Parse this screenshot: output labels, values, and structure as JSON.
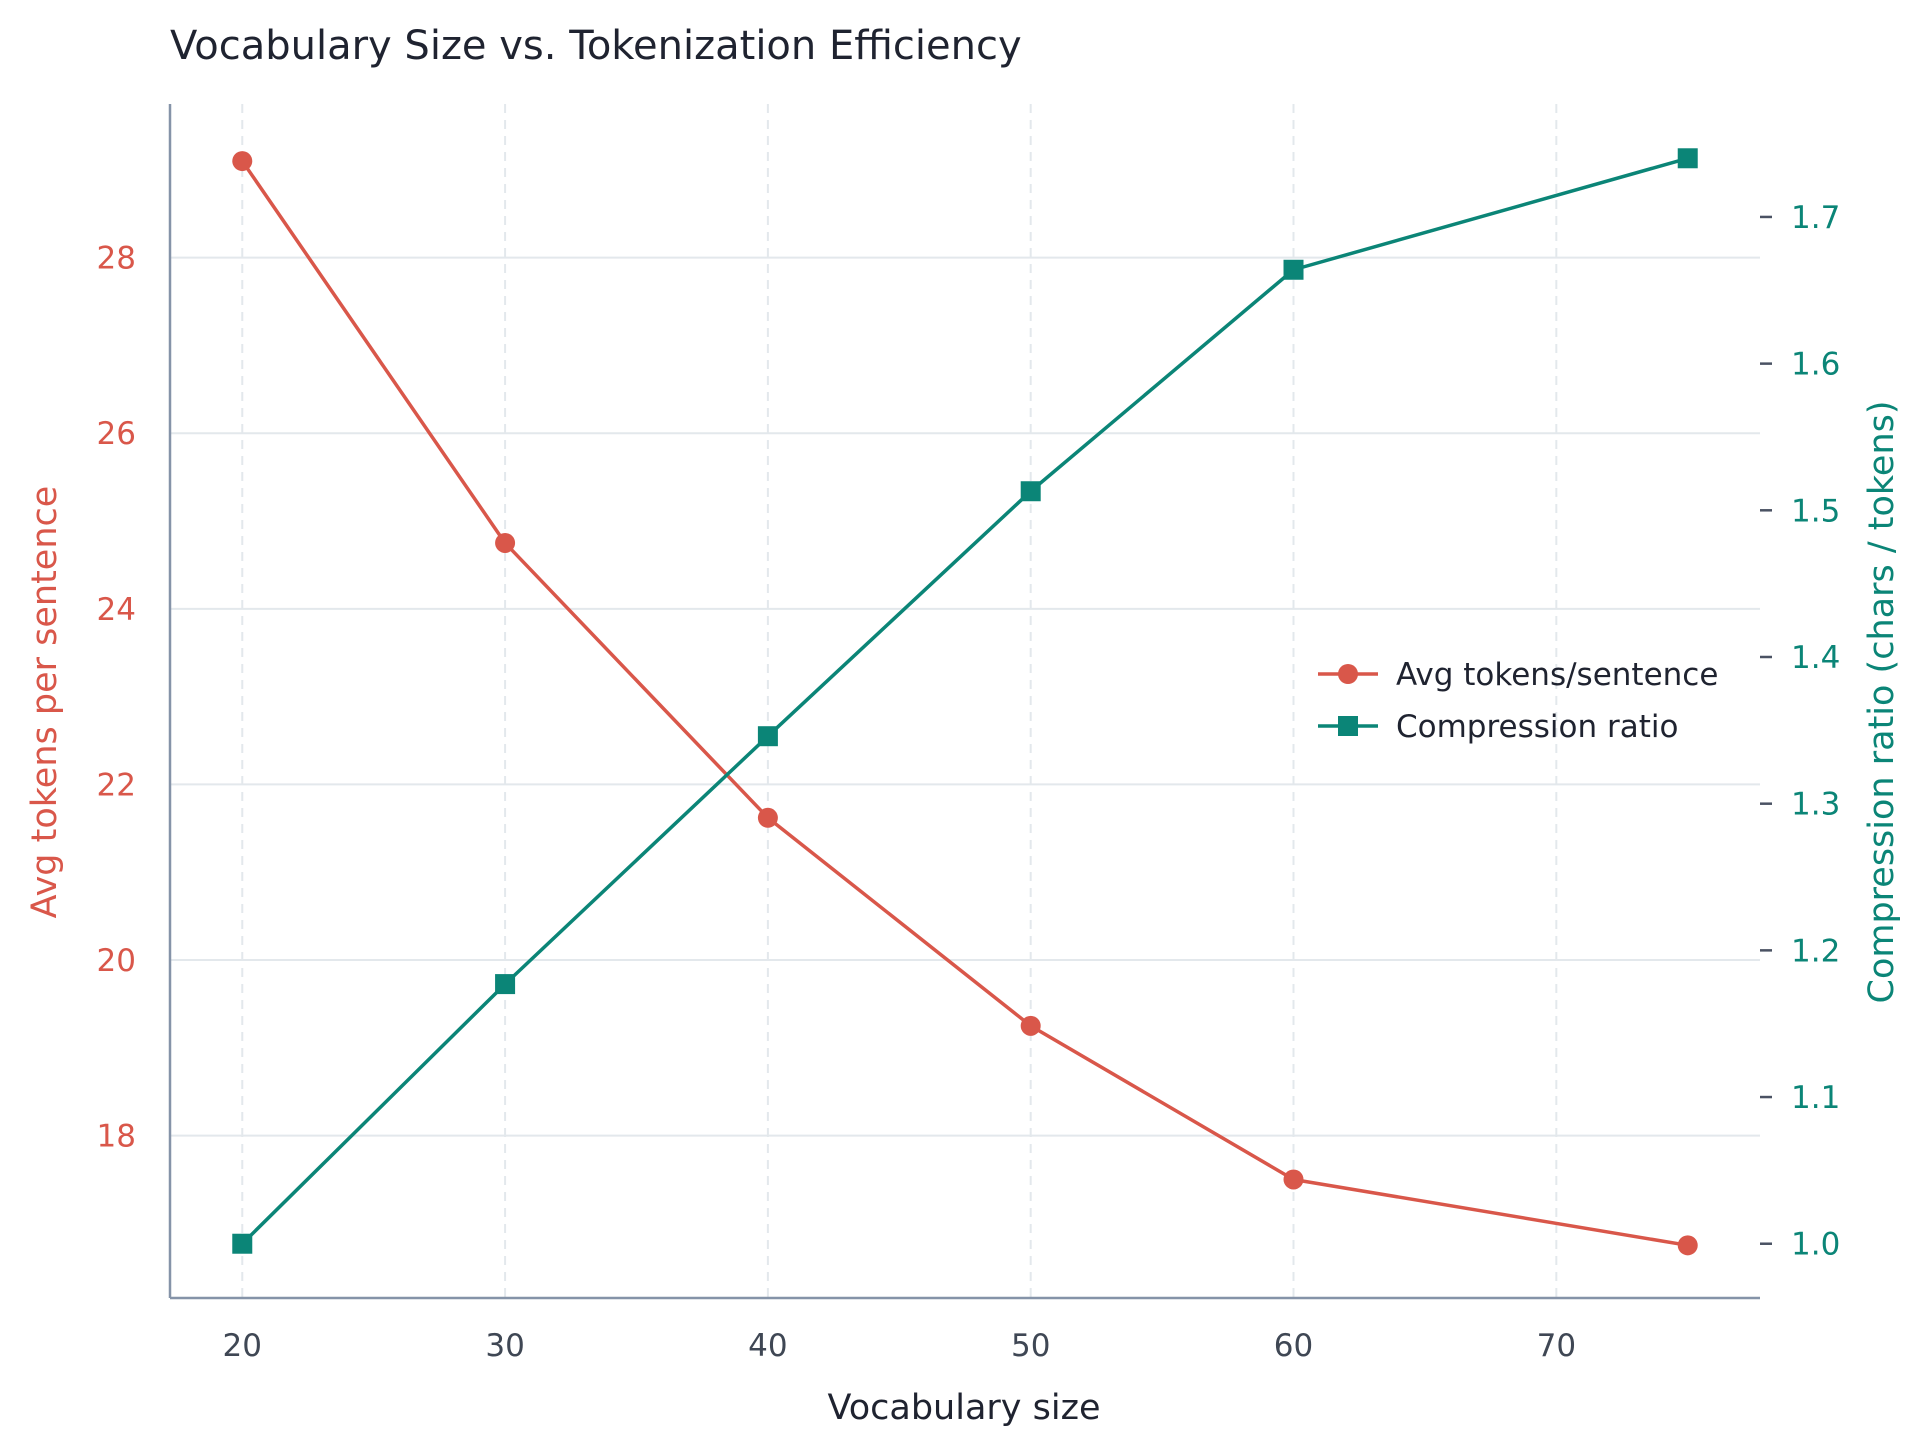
{
  "chart_data": {
    "type": "line",
    "title": "Vocabulary Size vs. Tokenization Efficiency",
    "xlabel": "Vocabulary size",
    "x": [
      20,
      30,
      40,
      50,
      60,
      75
    ],
    "x_ticks": [
      20,
      30,
      40,
      50,
      60,
      70
    ],
    "xlim": [
      17.25,
      77.75
    ],
    "grid": true,
    "legend_position": "center-right",
    "y_left": {
      "label": "Avg tokens per sentence",
      "ticks": [
        18,
        20,
        22,
        24,
        26,
        28
      ],
      "ylim": [
        16.15,
        29.75
      ],
      "color": "#d9574a"
    },
    "y_right": {
      "label": "Compression ratio (chars / tokens)",
      "ticks": [
        "1.0",
        "1.1",
        "1.2",
        "1.3",
        "1.4",
        "1.5",
        "1.6",
        "1.7"
      ],
      "ylim": [
        0.963,
        1.777
      ],
      "color": "#0b8577"
    },
    "series": [
      {
        "name": "Avg tokens/sentence",
        "axis": "left",
        "marker": "circle",
        "color": "#d9574a",
        "values": [
          29.1,
          24.75,
          21.62,
          19.25,
          17.5,
          16.75
        ]
      },
      {
        "name": "Compression ratio",
        "axis": "right",
        "marker": "square",
        "color": "#0b8577",
        "values": [
          1.0,
          1.177,
          1.346,
          1.513,
          1.664,
          1.74
        ]
      }
    ]
  }
}
